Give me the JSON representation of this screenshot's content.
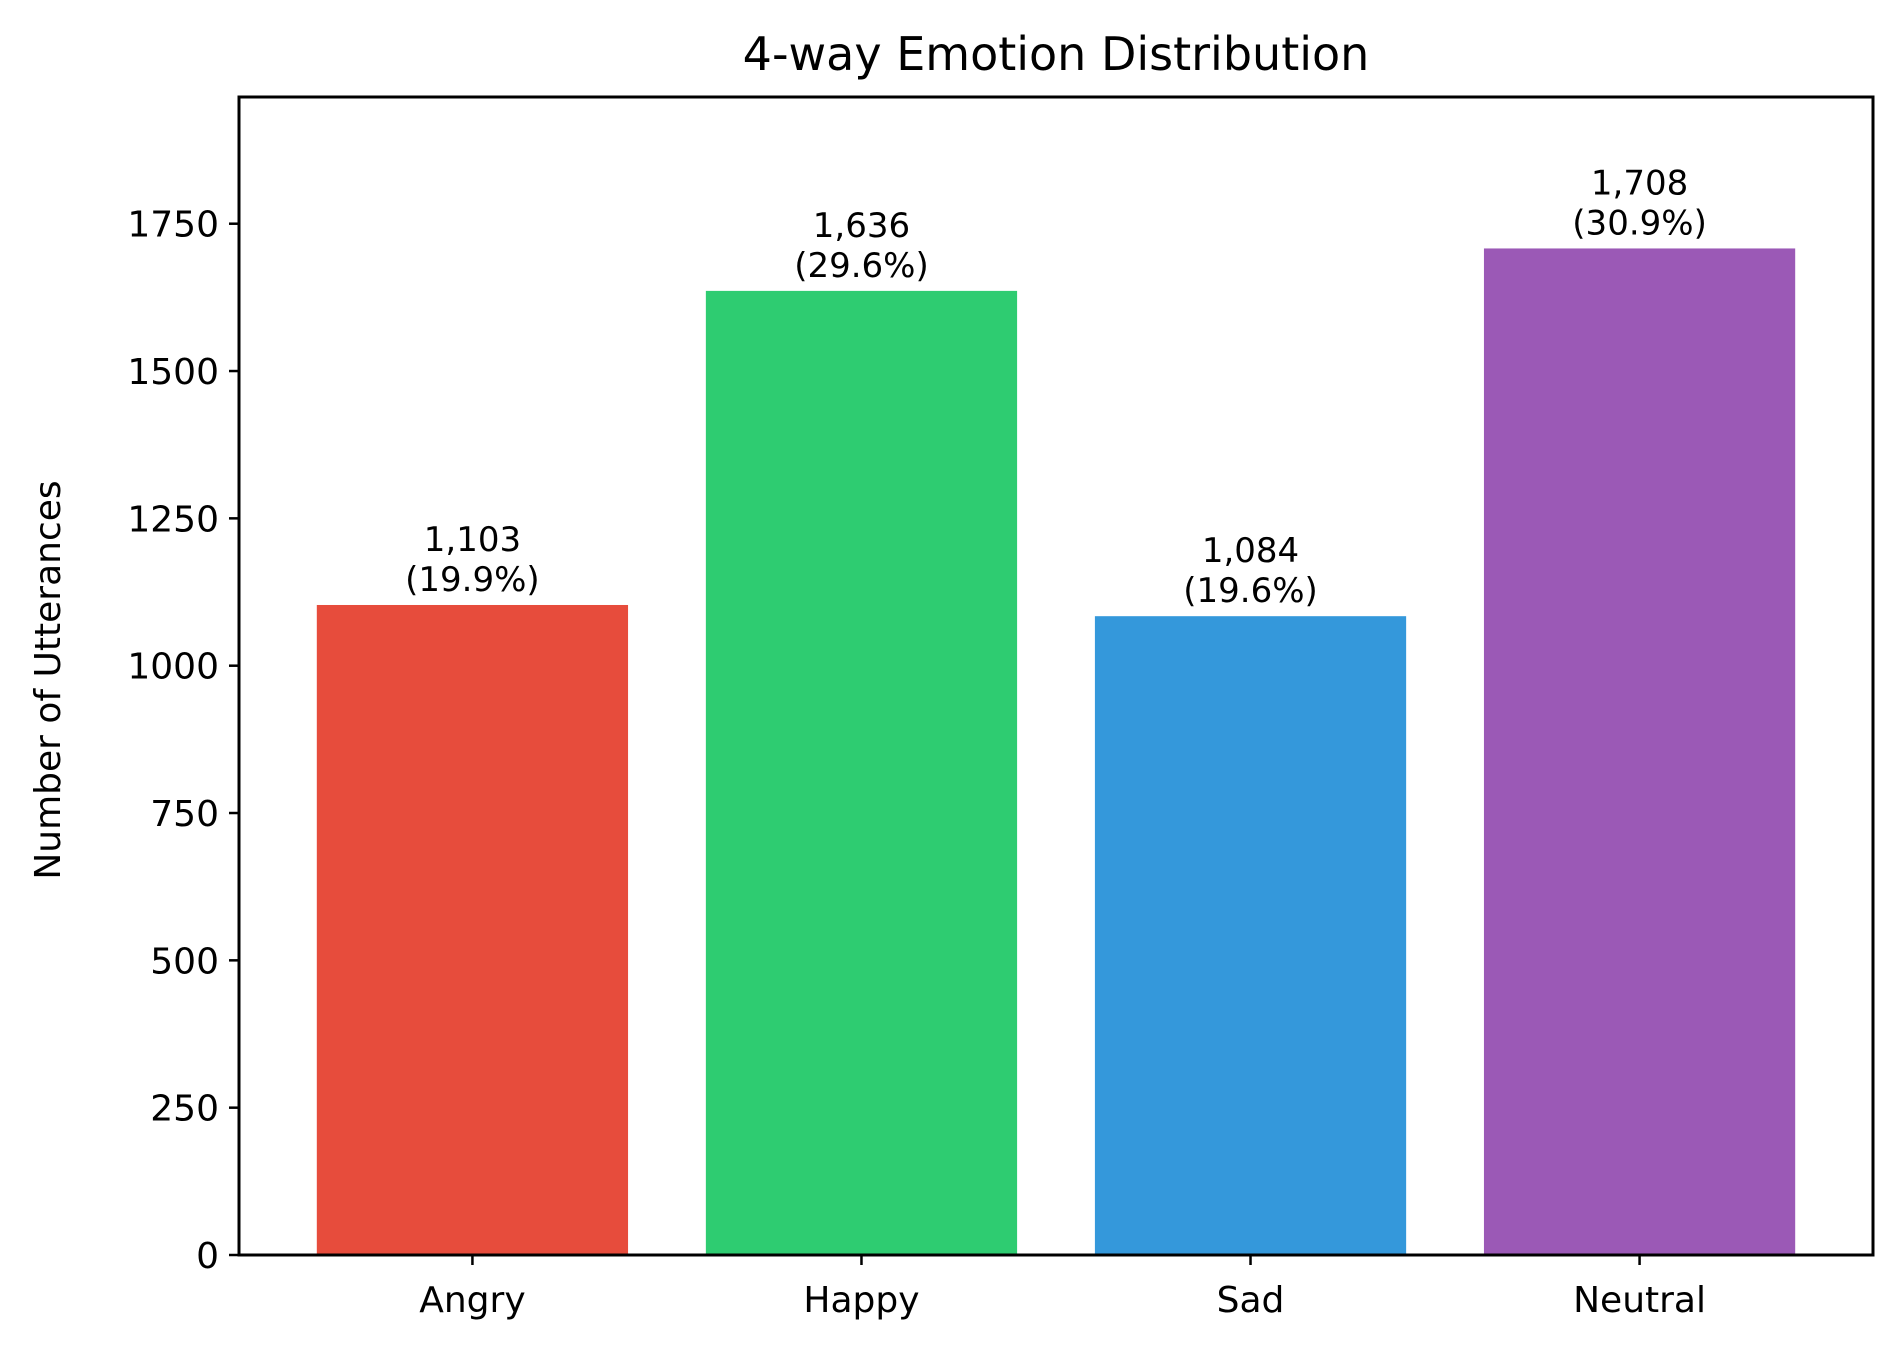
{
  "chart_data": {
    "type": "bar",
    "title": "4-way Emotion Distribution",
    "xlabel": "",
    "ylabel": "Number of Utterances",
    "categories": [
      "Angry",
      "Happy",
      "Sad",
      "Neutral"
    ],
    "values": [
      1103,
      1636,
      1084,
      1708
    ],
    "value_labels": [
      "1,103",
      "1,636",
      "1,084",
      "1,708"
    ],
    "percent_labels": [
      "(19.9%)",
      "(29.6%)",
      "(19.6%)",
      "(30.9%)"
    ],
    "colors": [
      "#e74c3c",
      "#2ecc71",
      "#3498db",
      "#9b59b6"
    ],
    "ylim": [
      0,
      1965
    ],
    "yticks": [
      0,
      250,
      500,
      750,
      1000,
      1250,
      1500,
      1750
    ],
    "grid": false,
    "legend": "none"
  }
}
